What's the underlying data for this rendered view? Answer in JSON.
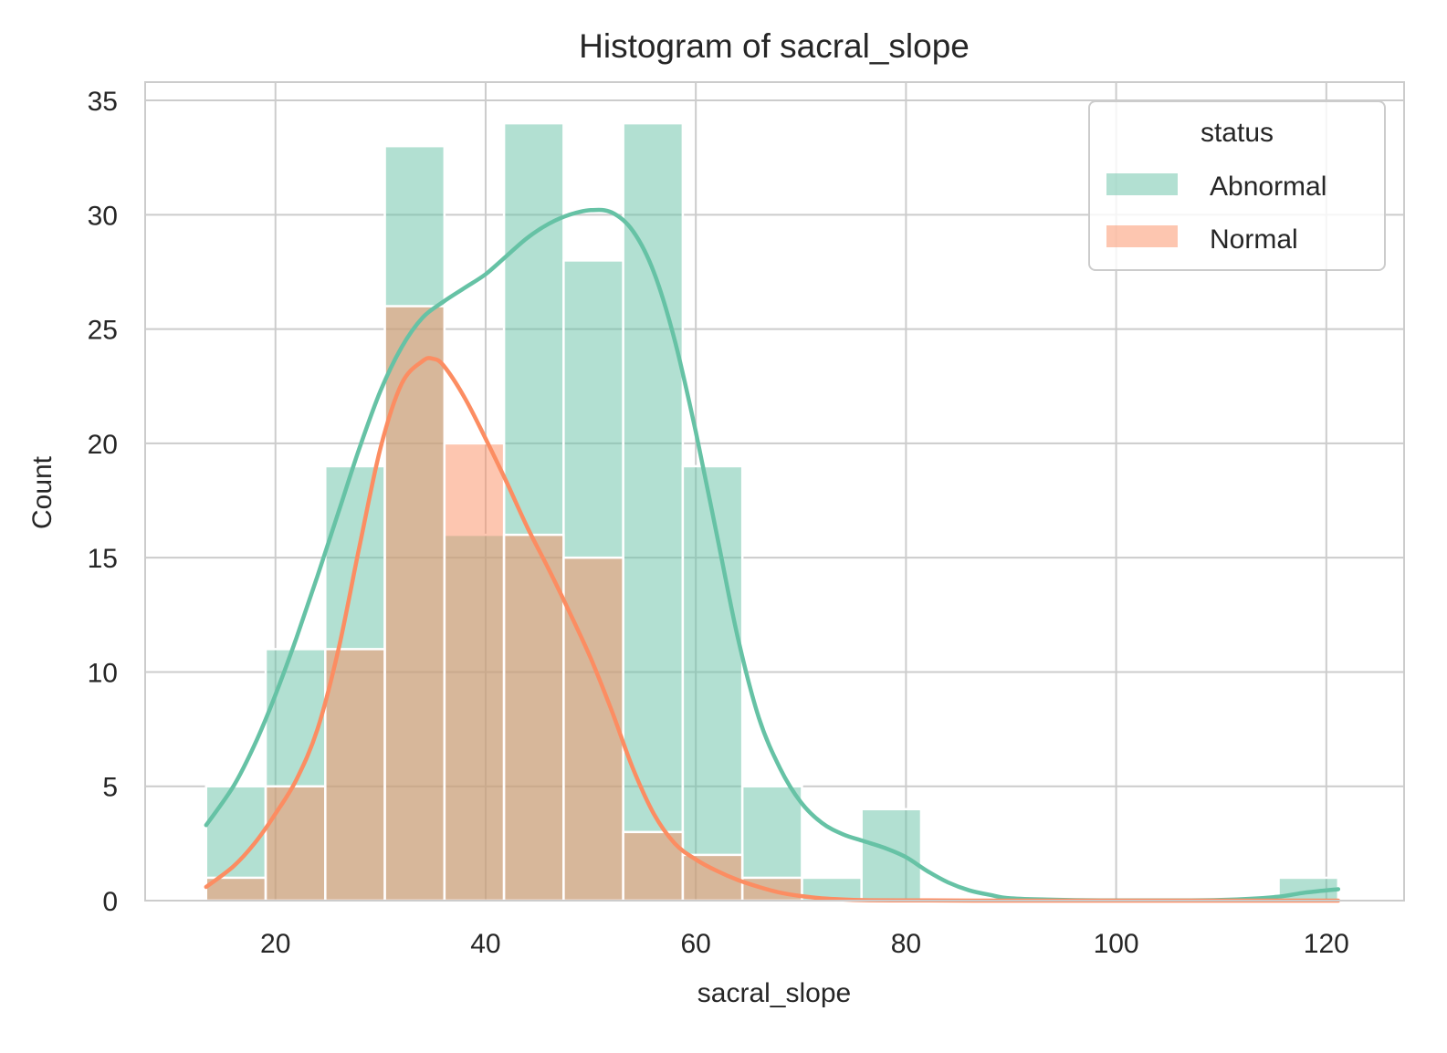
{
  "chart_data": {
    "type": "bar",
    "title": "Histogram of sacral_slope",
    "xlabel": "sacral_slope",
    "ylabel": "Count",
    "xlim": [
      7.6,
      127.4
    ],
    "ylim": [
      0,
      35.8
    ],
    "xticks": [
      20,
      40,
      60,
      80,
      100,
      120
    ],
    "yticks": [
      0,
      5,
      10,
      15,
      20,
      25,
      30,
      35
    ],
    "grid": true,
    "legend": {
      "title": "status",
      "placement": "top-right"
    },
    "bin_edges": [
      13.4,
      19.07,
      24.74,
      30.41,
      36.08,
      41.75,
      47.42,
      53.09,
      58.76,
      64.43,
      70.1,
      75.77,
      81.44,
      87.11,
      92.78,
      98.45,
      104.12,
      109.79,
      115.46,
      121.13
    ],
    "series": [
      {
        "name": "Abnormal",
        "color": "#66c2a5",
        "bar_alpha": 0.5,
        "values": [
          5,
          11,
          19,
          33,
          16,
          34,
          28,
          34,
          19,
          5,
          1,
          4,
          0,
          0,
          0,
          0,
          0,
          0,
          1
        ],
        "kde": {
          "x": [
            13.4,
            16,
            18,
            20,
            22,
            24,
            26,
            28,
            30,
            32,
            34,
            36,
            38,
            40,
            42,
            44,
            46,
            48,
            50,
            52,
            54,
            56,
            58,
            60,
            62,
            64,
            66,
            68,
            70,
            72,
            74,
            76,
            78,
            80,
            82,
            84,
            86,
            88,
            90,
            95,
            100,
            105,
            110,
            115,
            118,
            121.13
          ],
          "y": [
            3.3,
            5.0,
            6.8,
            9.0,
            11.5,
            14.2,
            17.0,
            19.8,
            22.3,
            24.2,
            25.5,
            26.2,
            26.8,
            27.4,
            28.2,
            29.0,
            29.6,
            30.0,
            30.2,
            30.1,
            29.3,
            27.5,
            24.5,
            20.5,
            16.0,
            11.5,
            8.0,
            5.8,
            4.3,
            3.4,
            2.9,
            2.6,
            2.3,
            1.9,
            1.3,
            0.8,
            0.45,
            0.25,
            0.1,
            0.03,
            0.01,
            0.01,
            0.03,
            0.15,
            0.35,
            0.5
          ]
        }
      },
      {
        "name": "Normal",
        "color": "#fc8d62",
        "bar_alpha": 0.5,
        "values": [
          1,
          5,
          11,
          26,
          20,
          16,
          15,
          3,
          2,
          1,
          0,
          0,
          0,
          0,
          0,
          0,
          0,
          0,
          0
        ],
        "kde": {
          "x": [
            13.4,
            16,
            18,
            20,
            22,
            24,
            26,
            28,
            30,
            32,
            34,
            35,
            36,
            38,
            40,
            42,
            44,
            46,
            48,
            50,
            52,
            54,
            56,
            58,
            60,
            62,
            64,
            66,
            68,
            70,
            72,
            74,
            76,
            80,
            90,
            100,
            110,
            121.13
          ],
          "y": [
            0.6,
            1.5,
            2.5,
            3.8,
            5.3,
            7.5,
            11.0,
            15.5,
            19.8,
            22.6,
            23.6,
            23.7,
            23.4,
            22.0,
            20.2,
            18.3,
            16.3,
            14.5,
            12.6,
            10.6,
            8.3,
            5.8,
            3.8,
            2.5,
            1.8,
            1.3,
            0.9,
            0.6,
            0.35,
            0.2,
            0.1,
            0.05,
            0.02,
            0.01,
            0.0,
            0.0,
            0.0,
            0.0
          ]
        }
      }
    ]
  }
}
